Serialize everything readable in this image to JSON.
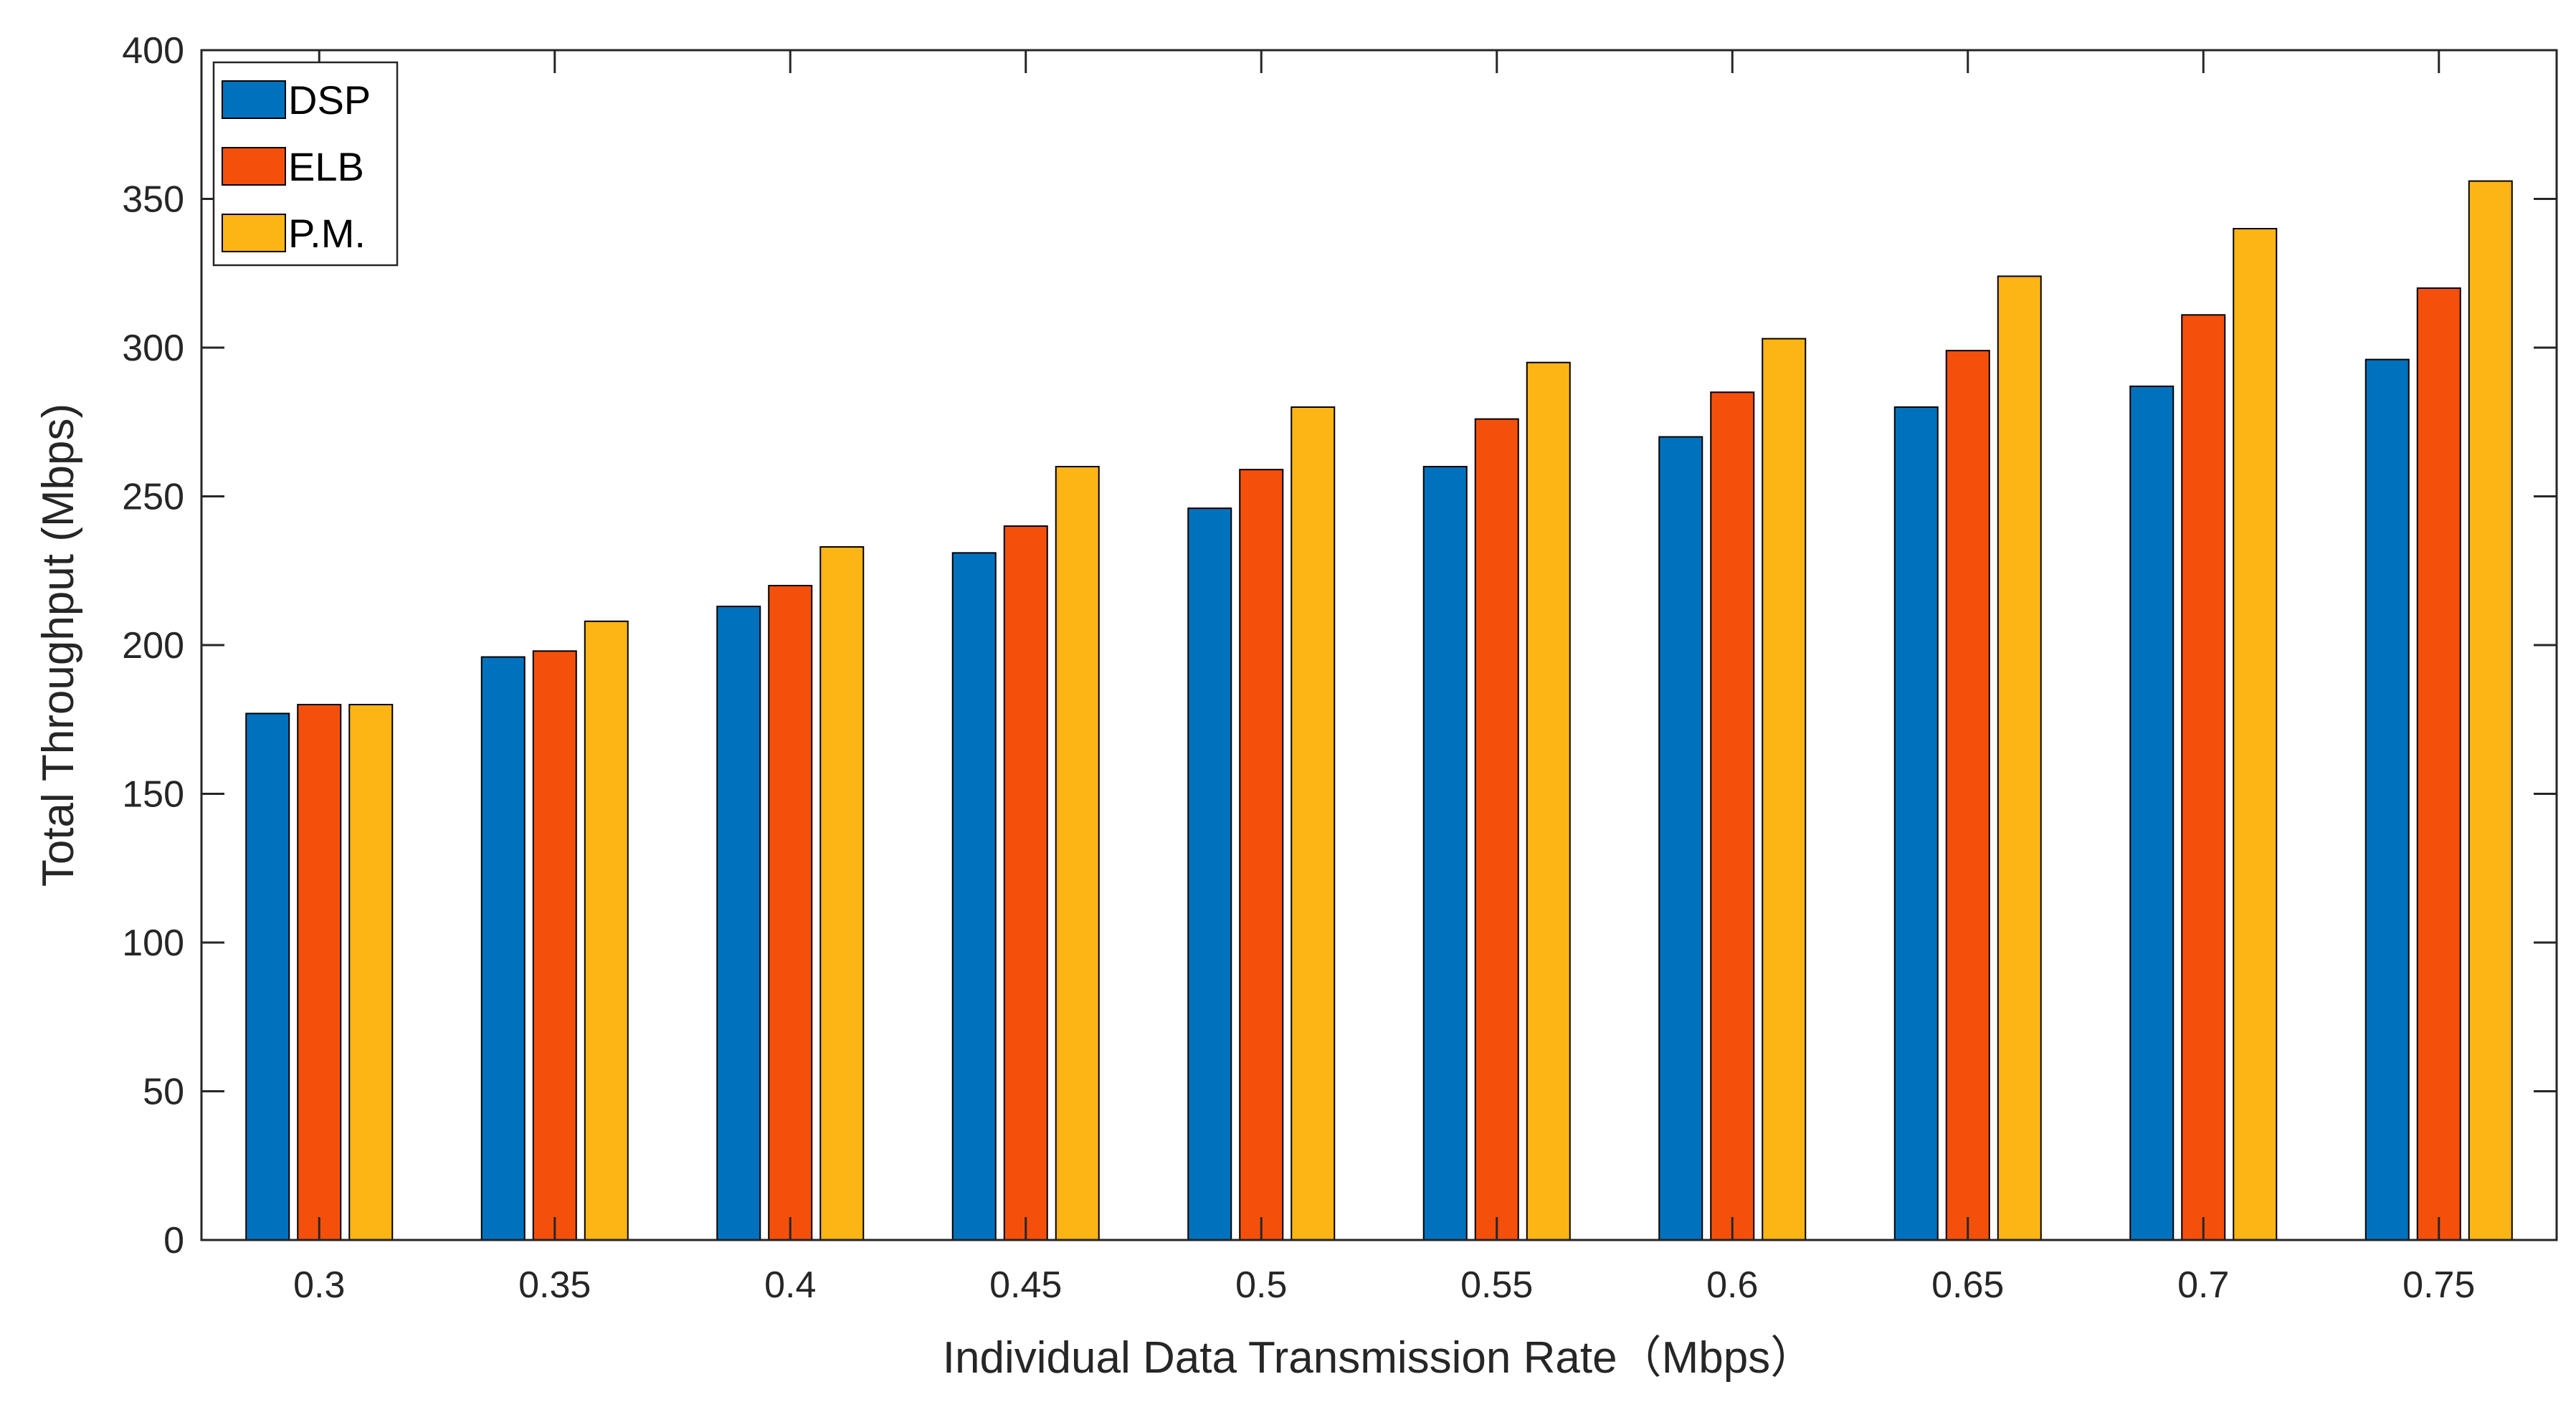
{
  "chart_data": {
    "type": "bar",
    "title": "",
    "xlabel": "Individual Data Transmission Rate（Mbps）",
    "ylabel": "Total Throughput (Mbps)",
    "ylim": [
      0,
      400
    ],
    "yticks": [
      0,
      50,
      100,
      150,
      200,
      250,
      300,
      350,
      400
    ],
    "ytick_labels": [
      "0",
      "50",
      "100",
      "150",
      "200",
      "250",
      "300",
      "350",
      "400"
    ],
    "categories": [
      "0.3",
      "0.35",
      "0.4",
      "0.45",
      "0.5",
      "0.55",
      "0.6",
      "0.65",
      "0.7",
      "0.75"
    ],
    "series": [
      {
        "name": "DSP",
        "color": "#0072BD",
        "values": [
          177,
          196,
          213,
          231,
          246,
          260,
          270,
          280,
          287,
          296
        ]
      },
      {
        "name": "ELB",
        "color": "#F4500C",
        "values": [
          180,
          198,
          220,
          240,
          259,
          276,
          285,
          299,
          311,
          320
        ]
      },
      {
        "name": "P.M.",
        "color": "#FDB515",
        "values": [
          180,
          208,
          233,
          260,
          280,
          295,
          303,
          324,
          340,
          356
        ]
      }
    ],
    "legend_position": "top-left",
    "grid": false
  }
}
